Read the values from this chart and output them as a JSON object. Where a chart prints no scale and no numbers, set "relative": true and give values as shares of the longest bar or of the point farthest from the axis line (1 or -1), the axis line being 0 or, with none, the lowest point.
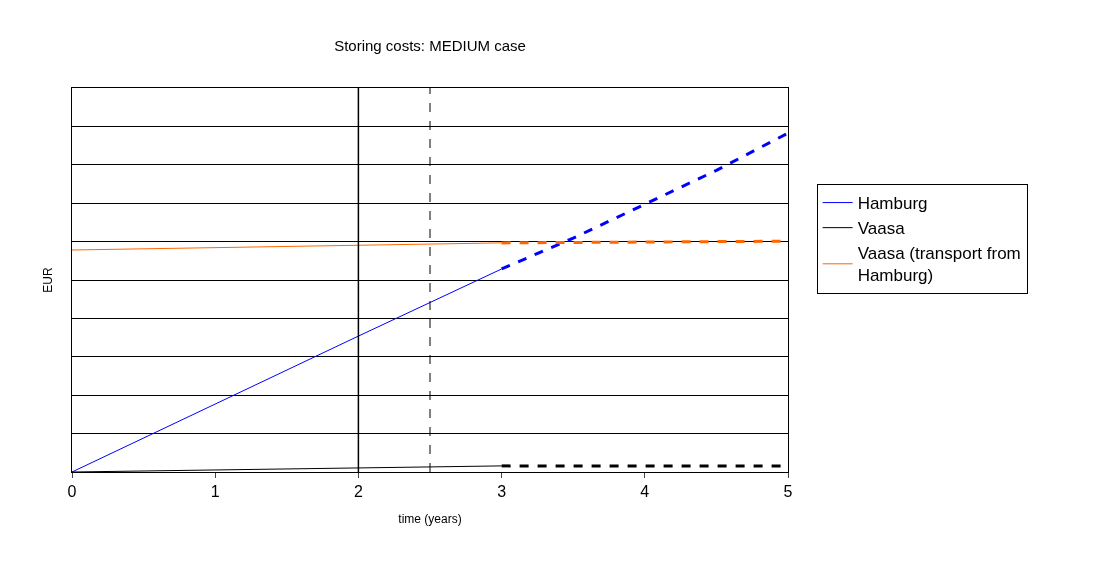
{
  "chart_data": {
    "type": "line",
    "title": "Storing costs: MEDIUM case",
    "xlabel": "time (years)",
    "ylabel": "EUR",
    "relative": true,
    "xlim": [
      0,
      5
    ],
    "xticks": [
      0,
      1,
      2,
      3,
      4,
      5
    ],
    "grid": "y",
    "legend": "right",
    "line_style": "solid",
    "marker": "none",
    "series": [
      {
        "name": "Hamburg",
        "color": "#0000ff",
        "x": [
          0,
          2,
          3
        ],
        "values": [
          0,
          0.401,
          0.599
        ]
      },
      {
        "color": "#0000ff",
        "x": [
          3,
          3.5,
          4,
          4.5,
          5
        ],
        "values": [
          0.599,
          0.69,
          0.79,
          0.89,
          1
        ],
        "line_style": "dashed"
      },
      {
        "name": "Vaasa",
        "color": "#000000",
        "x": [
          0,
          3
        ],
        "values": [
          0,
          0.018
        ]
      },
      {
        "color": "#000000",
        "x": [
          3,
          5
        ],
        "values": [
          0.018,
          0.018
        ],
        "line_style": "dashed"
      },
      {
        "name": "Vaasa (transport from Hamburg)",
        "color": "#ff6600",
        "x": [
          0,
          3
        ],
        "values": [
          0.655,
          0.676
        ]
      },
      {
        "color": "#ff6600",
        "x": [
          3,
          5
        ],
        "values": [
          0.676,
          0.681
        ],
        "line_style": "dashed"
      }
    ],
    "ref_lines": [
      {
        "axis": "x",
        "value": 2,
        "color": "#000000",
        "line_style": "solid"
      },
      {
        "axis": "x",
        "value": 2.5,
        "color": "#000000",
        "line_style": "dashed"
      }
    ]
  }
}
